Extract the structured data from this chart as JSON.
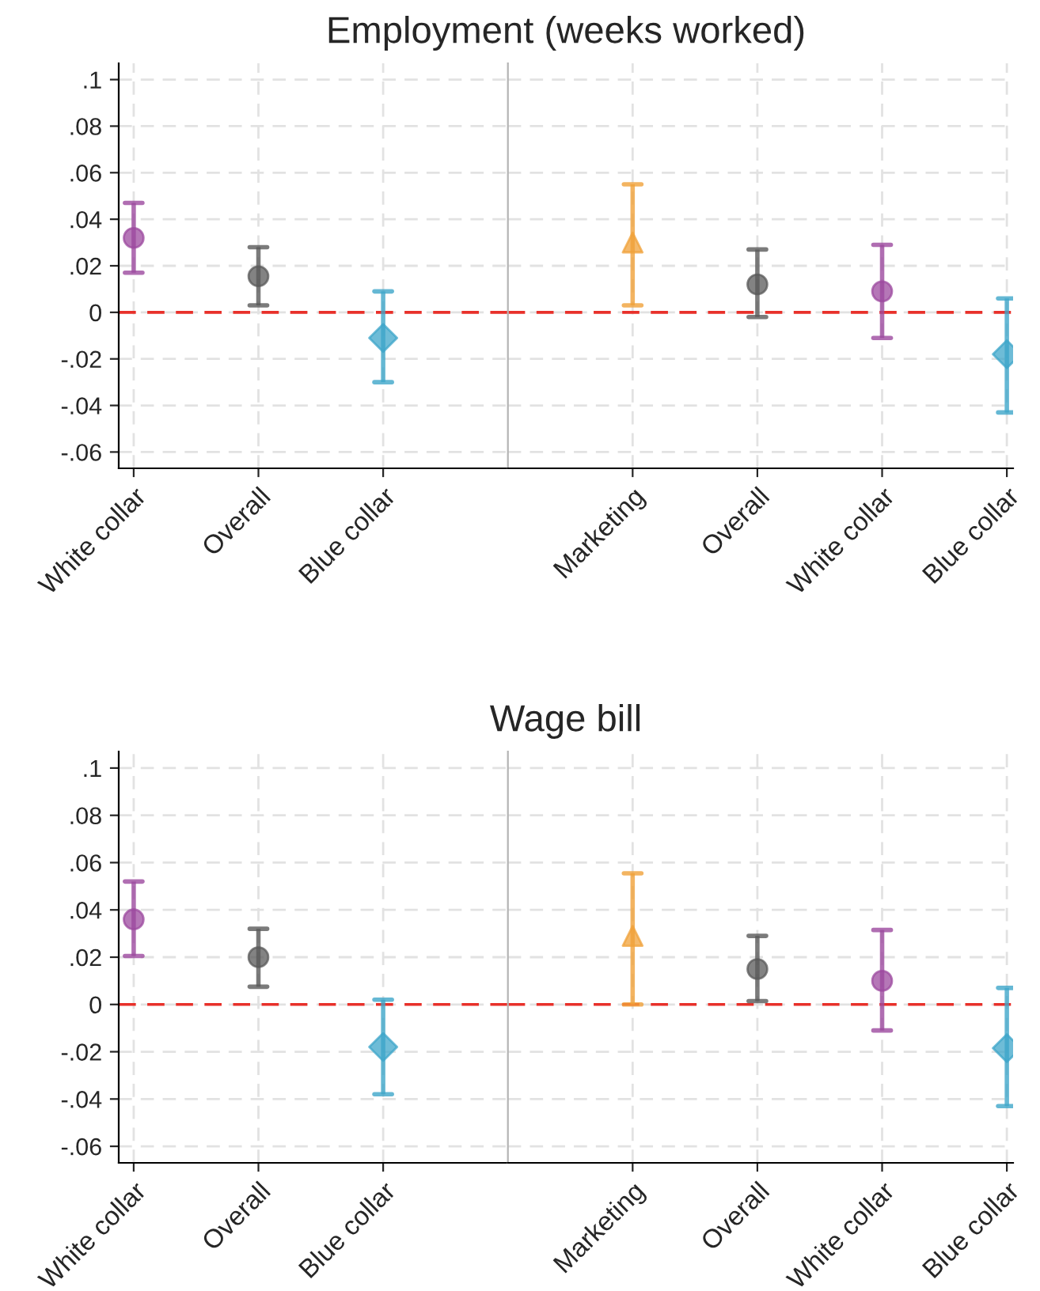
{
  "chart_data": [
    {
      "type": "scatter",
      "title": "Employment (weeks worked)",
      "categories": [
        "White collar",
        "Overall",
        "Blue collar"
      ],
      "series": [
        {
          "color": "#9c4a9f",
          "marker": "circle",
          "values": [
            0.032,
            null,
            null
          ],
          "errors": [
            [
              0.017,
              0.047
            ],
            null,
            null
          ]
        },
        {
          "color": "#5a5a5a",
          "marker": "circle",
          "values": [
            null,
            0.0155,
            null
          ],
          "errors": [
            null,
            [
              0.003,
              0.028
            ],
            null
          ]
        },
        {
          "color": "#3ea6c9",
          "marker": "diamond",
          "values": [
            null,
            null,
            -0.011
          ],
          "errors": [
            null,
            null,
            [
              -0.03,
              0.009
            ]
          ]
        }
      ],
      "ylim": [
        -0.067,
        0.107
      ],
      "yticks": [
        {
          "value": -0.06,
          "label": "-.06"
        },
        {
          "value": -0.04,
          "label": "-.04"
        },
        {
          "value": -0.02,
          "label": "-.02"
        },
        0,
        {
          "value": 0.02,
          "label": ".02"
        },
        {
          "value": 0.04,
          "label": ".04"
        },
        {
          "value": 0.06,
          "label": ".06"
        },
        {
          "value": 0.08,
          "label": ".08"
        },
        {
          "value": 0.1,
          "label": ".1"
        }
      ],
      "grid": true,
      "ref_lines": [
        {
          "axis": "y",
          "value": 0,
          "color": "#e8302a",
          "line_style": "dashed"
        }
      ]
    },
    {
      "type": "scatter",
      "categories": [
        "Marketing",
        "Overall",
        "White collar",
        "Blue collar"
      ],
      "series": [
        {
          "color": "#f0a13a",
          "marker": "triangle",
          "values": [
            0.03,
            null,
            null,
            null
          ],
          "errors": [
            [
              0.003,
              0.055
            ],
            null,
            null,
            null
          ]
        },
        {
          "color": "#5a5a5a",
          "marker": "circle",
          "values": [
            null,
            0.012,
            null,
            null
          ],
          "errors": [
            null,
            [
              -0.002,
              0.027
            ],
            null,
            null
          ]
        },
        {
          "color": "#9c4a9f",
          "marker": "circle",
          "values": [
            null,
            null,
            0.009,
            null
          ],
          "errors": [
            null,
            null,
            [
              -0.011,
              0.029
            ],
            null
          ]
        },
        {
          "color": "#3ea6c9",
          "marker": "diamond",
          "values": [
            null,
            null,
            null,
            -0.018
          ],
          "errors": [
            null,
            null,
            null,
            [
              -0.043,
              0.006
            ]
          ]
        }
      ],
      "ylim": [
        -0.067,
        0.107
      ],
      "tick_labels": "x",
      "grid": true,
      "ref_lines": [
        {
          "axis": "y",
          "value": 0,
          "color": "#e8302a",
          "line_style": "dashed"
        }
      ]
    },
    {
      "type": "scatter",
      "categories": [
        "White collar",
        "Overall",
        "Blue collar"
      ],
      "series": [
        {
          "color": "#9c4a9f",
          "marker": "circle",
          "values": [
            0.036,
            null,
            null
          ],
          "errors": [
            [
              0.0205,
              0.052
            ],
            null,
            null
          ]
        },
        {
          "color": "#5a5a5a",
          "marker": "circle",
          "values": [
            null,
            0.02,
            null
          ],
          "errors": [
            null,
            [
              0.0075,
              0.032
            ],
            null
          ]
        },
        {
          "color": "#3ea6c9",
          "marker": "diamond",
          "values": [
            null,
            null,
            -0.018
          ],
          "errors": [
            null,
            null,
            [
              -0.038,
              0.002
            ]
          ]
        }
      ],
      "ylim": [
        -0.067,
        0.107
      ],
      "yticks": [
        {
          "value": -0.06,
          "label": "-.06"
        },
        {
          "value": -0.04,
          "label": "-.04"
        },
        {
          "value": -0.02,
          "label": "-.02"
        },
        0,
        {
          "value": 0.02,
          "label": ".02"
        },
        {
          "value": 0.04,
          "label": ".04"
        },
        {
          "value": 0.06,
          "label": ".06"
        },
        {
          "value": 0.08,
          "label": ".08"
        },
        {
          "value": 0.1,
          "label": ".1"
        }
      ],
      "grid": true,
      "ref_lines": [
        {
          "axis": "y",
          "value": 0,
          "color": "#e8302a",
          "line_style": "dashed"
        }
      ]
    },
    {
      "type": "scatter",
      "categories": [
        "Marketing",
        "Overall",
        "White collar",
        "Blue collar"
      ],
      "series": [
        {
          "color": "#f0a13a",
          "marker": "triangle",
          "values": [
            0.029,
            null,
            null,
            null
          ],
          "errors": [
            [
              0.0,
              0.0555
            ],
            null,
            null,
            null
          ]
        },
        {
          "color": "#5a5a5a",
          "marker": "circle",
          "values": [
            null,
            0.015,
            null,
            null
          ],
          "errors": [
            null,
            [
              0.0014,
              0.029
            ],
            null,
            null
          ]
        },
        {
          "color": "#9c4a9f",
          "marker": "circle",
          "values": [
            null,
            null,
            0.01,
            null
          ],
          "errors": [
            null,
            null,
            [
              -0.011,
              0.0315
            ],
            null
          ]
        },
        {
          "color": "#3ea6c9",
          "marker": "diamond",
          "values": [
            null,
            null,
            null,
            -0.0185
          ],
          "errors": [
            null,
            null,
            null,
            [
              -0.043,
              0.007
            ]
          ]
        }
      ],
      "title": "Wage bill",
      "ylim": [
        -0.067,
        0.107
      ],
      "tick_labels": "x",
      "grid": true,
      "ref_lines": [
        {
          "axis": "y",
          "value": 0,
          "color": "#e8302a",
          "line_style": "dashed"
        }
      ]
    }
  ]
}
